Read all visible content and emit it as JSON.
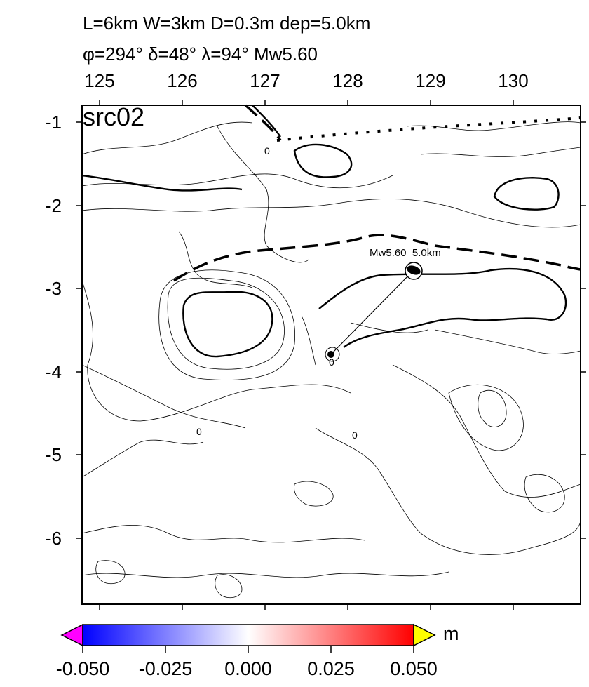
{
  "title": {
    "line1": "L=6km W=3km D=0.3m dep=5.0km",
    "line2": "φ=294° δ=48° λ=94° Mw5.60"
  },
  "panel_label": "src02",
  "x_axis": {
    "ticks": [
      "125",
      "126",
      "127",
      "128",
      "129",
      "130"
    ],
    "range": [
      124.8,
      130.8
    ]
  },
  "y_axis": {
    "ticks": [
      "-1",
      "-2",
      "-3",
      "-4",
      "-5",
      "-6"
    ],
    "range": [
      -6.8,
      -0.8
    ]
  },
  "event_label": "Mw5.60_5.0km",
  "contour_labels": [
    "0",
    "0",
    "0",
    "0"
  ],
  "colorbar": {
    "ticks": [
      "-0.050",
      "-0.025",
      "0.000",
      "0.025",
      "0.050"
    ],
    "unit": "m",
    "colors": {
      "low": "#0000ff",
      "mid": "#ffffff",
      "high": "#ff0000",
      "under": "#ff00ff",
      "over": "#ffff00"
    }
  }
}
